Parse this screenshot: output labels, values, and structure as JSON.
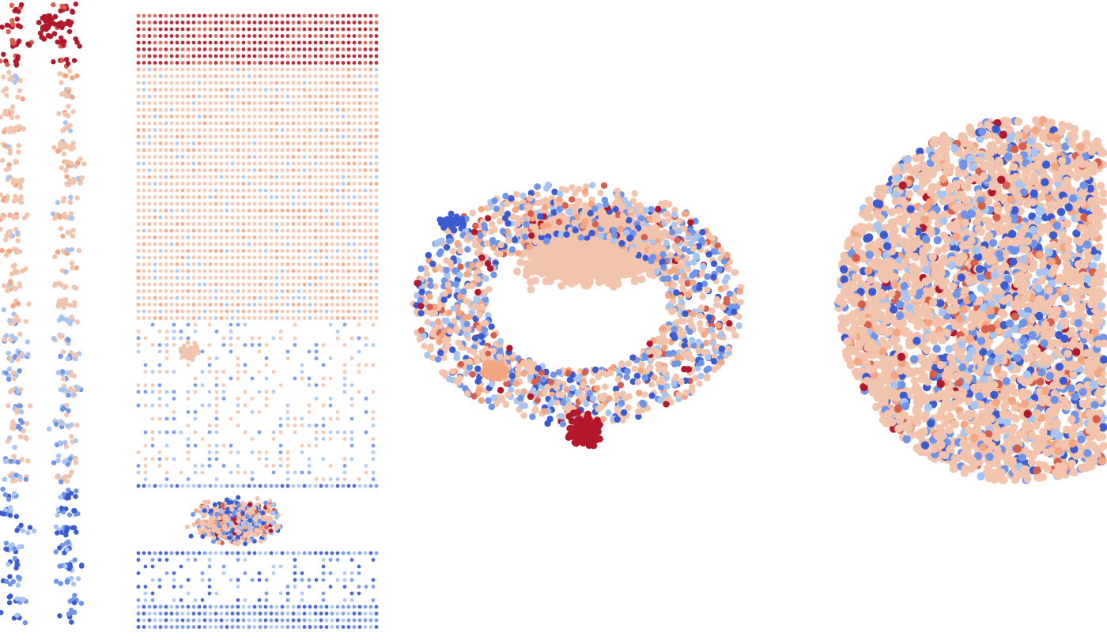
{
  "figure": {
    "panels": [
      {
        "name": "cluster-columns-panel",
        "style": "columns"
      },
      {
        "name": "grid-layout-panel",
        "style": "grid"
      },
      {
        "name": "force-layout-panel",
        "style": "force"
      },
      {
        "name": "circular-layout-panel",
        "style": "disc"
      }
    ],
    "palette": {
      "dark_red": "#b2182b",
      "red": "#d6604d",
      "salmon": "#f4a582",
      "peach": "#f3c4ad",
      "light_blue": "#a7c5f0",
      "blue": "#6f94e8",
      "dark_blue": "#3b5bd0",
      "grey": "#dcdcdc"
    }
  }
}
